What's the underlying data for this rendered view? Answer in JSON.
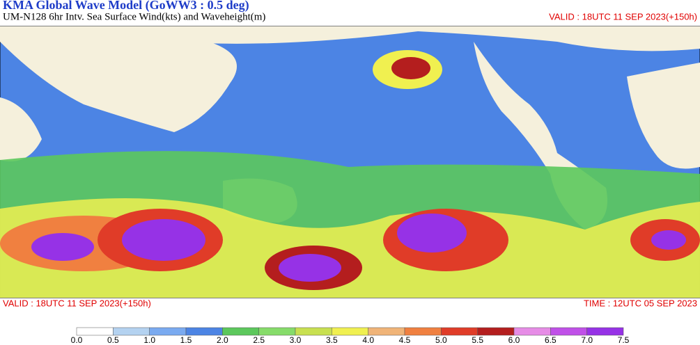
{
  "header": {
    "title": "KMA  Global Wave Model (GoWW3 : 0.5 deg)",
    "subtitle": "UM-N128  6hr Intv. Sea Surface Wind(kts) and Waveheight(m)",
    "valid_top": "VALID : 18UTC 11 SEP 2023(+150h)"
  },
  "footer": {
    "valid": "VALID : 18UTC 11 SEP 2023(+150h)",
    "time": "TIME : 12UTC 05 SEP 2023"
  },
  "legend": {
    "labels": [
      "0.0",
      "0.5",
      "1.0",
      "1.5",
      "2.0",
      "2.5",
      "3.0",
      "3.5",
      "4.0",
      "4.5",
      "5.0",
      "5.5",
      "6.0",
      "6.5",
      "7.0",
      "7.5"
    ],
    "colors": [
      "#ffffff",
      "#b4d2f0",
      "#7aaaf0",
      "#4c84e4",
      "#5cc85c",
      "#86dc6a",
      "#c8e050",
      "#f0f050",
      "#f0b478",
      "#f08040",
      "#e03c28",
      "#b41e1e",
      "#e68ce6",
      "#c050e8",
      "#9632e6"
    ]
  }
}
